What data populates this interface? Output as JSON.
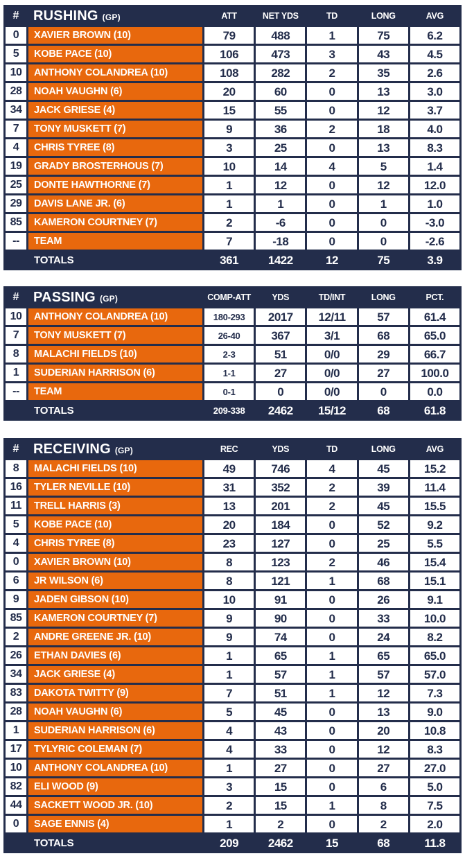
{
  "colors": {
    "navy": "#232D4B",
    "orange": "#E8680D",
    "white": "#FFFFFF"
  },
  "chart_data": [
    {
      "type": "table",
      "id": "rushing",
      "number_col": "#",
      "title": "RUSHING",
      "gp_suffix": "(GP)",
      "columns": [
        "ATT",
        "NET YDS",
        "TD",
        "LONG",
        "AVG"
      ],
      "narrow_first_column": false,
      "rows": [
        [
          "0",
          "XAVIER BROWN (10)",
          "79",
          "488",
          "1",
          "75",
          "6.2"
        ],
        [
          "5",
          "KOBE PACE (10)",
          "106",
          "473",
          "3",
          "43",
          "4.5"
        ],
        [
          "10",
          "ANTHONY COLANDREA (10)",
          "108",
          "282",
          "2",
          "35",
          "2.6"
        ],
        [
          "28",
          "NOAH VAUGHN (6)",
          "20",
          "60",
          "0",
          "13",
          "3.0"
        ],
        [
          "34",
          "JACK GRIESE (4)",
          "15",
          "55",
          "0",
          "12",
          "3.7"
        ],
        [
          "7",
          "TONY MUSKETT (7)",
          "9",
          "36",
          "2",
          "18",
          "4.0"
        ],
        [
          "4",
          "CHRIS TYREE (8)",
          "3",
          "25",
          "0",
          "13",
          "8.3"
        ],
        [
          "19",
          "GRADY BROSTERHOUS (7)",
          "10",
          "14",
          "4",
          "5",
          "1.4"
        ],
        [
          "25",
          "DONTE HAWTHORNE (7)",
          "1",
          "12",
          "0",
          "12",
          "12.0"
        ],
        [
          "29",
          "DAVIS LANE JR. (6)",
          "1",
          "1",
          "0",
          "1",
          "1.0"
        ],
        [
          "85",
          "KAMERON COURTNEY (7)",
          "2",
          "-6",
          "0",
          "0",
          "-3.0"
        ],
        [
          "--",
          "TEAM",
          "7",
          "-18",
          "0",
          "0",
          "-2.6"
        ]
      ],
      "totals_label": "TOTALS",
      "totals": [
        "361",
        "1422",
        "12",
        "75",
        "3.9"
      ]
    },
    {
      "type": "table",
      "id": "passing",
      "number_col": "#",
      "title": "PASSING",
      "gp_suffix": "(GP)",
      "columns": [
        "COMP-ATT",
        "YDS",
        "TD/INT",
        "LONG",
        "PCT."
      ],
      "narrow_first_column": true,
      "rows": [
        [
          "10",
          "ANTHONY COLANDREA (10)",
          "180-293",
          "2017",
          "12/11",
          "57",
          "61.4"
        ],
        [
          "7",
          "TONY MUSKETT (7)",
          "26-40",
          "367",
          "3/1",
          "68",
          "65.0"
        ],
        [
          "8",
          "MALACHI FIELDS (10)",
          "2-3",
          "51",
          "0/0",
          "29",
          "66.7"
        ],
        [
          "1",
          "SUDERIAN HARRISON (6)",
          "1-1",
          "27",
          "0/0",
          "27",
          "100.0"
        ],
        [
          "--",
          "TEAM",
          "0-1",
          "0",
          "0/0",
          "0",
          "0.0"
        ]
      ],
      "totals_label": "TOTALS",
      "totals": [
        "209-338",
        "2462",
        "15/12",
        "68",
        "61.8"
      ]
    },
    {
      "type": "table",
      "id": "receiving",
      "number_col": "#",
      "title": "RECEIVING",
      "gp_suffix": "(GP)",
      "columns": [
        "REC",
        "YDS",
        "TD",
        "LONG",
        "AVG"
      ],
      "narrow_first_column": false,
      "rows": [
        [
          "8",
          "MALACHI FIELDS (10)",
          "49",
          "746",
          "4",
          "45",
          "15.2"
        ],
        [
          "16",
          "TYLER NEVILLE (10)",
          "31",
          "352",
          "2",
          "39",
          "11.4"
        ],
        [
          "11",
          "TRELL HARRIS (3)",
          "13",
          "201",
          "2",
          "45",
          "15.5"
        ],
        [
          "5",
          "KOBE PACE (10)",
          "20",
          "184",
          "0",
          "52",
          "9.2"
        ],
        [
          "4",
          "CHRIS TYREE (8)",
          "23",
          "127",
          "0",
          "25",
          "5.5"
        ],
        [
          "0",
          "XAVIER BROWN (10)",
          "8",
          "123",
          "2",
          "46",
          "15.4"
        ],
        [
          "6",
          "JR WILSON (6)",
          "8",
          "121",
          "1",
          "68",
          "15.1"
        ],
        [
          "9",
          "JADEN GIBSON (10)",
          "10",
          "91",
          "0",
          "26",
          "9.1"
        ],
        [
          "85",
          "KAMERON COURTNEY (7)",
          "9",
          "90",
          "0",
          "33",
          "10.0"
        ],
        [
          "2",
          "ANDRE GREENE JR. (10)",
          "9",
          "74",
          "0",
          "24",
          "8.2"
        ],
        [
          "26",
          "ETHAN DAVIES (6)",
          "1",
          "65",
          "1",
          "65",
          "65.0"
        ],
        [
          "34",
          "JACK GRIESE (4)",
          "1",
          "57",
          "1",
          "57",
          "57.0"
        ],
        [
          "83",
          "DAKOTA TWITTY (9)",
          "7",
          "51",
          "1",
          "12",
          "7.3"
        ],
        [
          "28",
          "NOAH VAUGHN (6)",
          "5",
          "45",
          "0",
          "13",
          "9.0"
        ],
        [
          "1",
          "SUDERIAN HARRISON (6)",
          "4",
          "43",
          "0",
          "20",
          "10.8"
        ],
        [
          "17",
          "TYLYRIC COLEMAN (7)",
          "4",
          "33",
          "0",
          "12",
          "8.3"
        ],
        [
          "10",
          "ANTHONY COLANDREA (10)",
          "1",
          "27",
          "0",
          "27",
          "27.0"
        ],
        [
          "82",
          "ELI WOOD (9)",
          "3",
          "15",
          "0",
          "6",
          "5.0"
        ],
        [
          "44",
          "SACKETT WOOD JR. (10)",
          "2",
          "15",
          "1",
          "8",
          "7.5"
        ],
        [
          "0",
          "SAGE ENNIS (4)",
          "1",
          "2",
          "0",
          "2",
          "2.0"
        ]
      ],
      "totals_label": "TOTALS",
      "totals": [
        "209",
        "2462",
        "15",
        "68",
        "11.8"
      ]
    }
  ]
}
